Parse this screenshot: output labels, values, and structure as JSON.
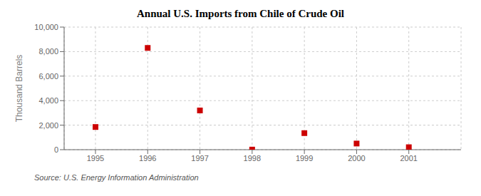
{
  "chart_data": {
    "type": "scatter",
    "title": "Annual U.S. Imports from Chile of Crude Oil",
    "y_label": "Thousand Barrels",
    "annotations": [
      "Source: U.S. Energy Information Administration"
    ],
    "x": [
      1995,
      1996,
      1997,
      1998,
      1999,
      2000,
      2001
    ],
    "values": [
      1850,
      8300,
      3200,
      7,
      1350,
      500,
      200
    ],
    "xlim": [
      1994.4,
      2002.0
    ],
    "xticks": [
      1995,
      1996,
      1997,
      1998,
      1999,
      2000,
      2001
    ],
    "ylim": [
      0,
      10000
    ],
    "yticks": [
      0,
      {
        "value": 2000,
        "label": "2,000"
      },
      {
        "value": 4000,
        "label": "4,000"
      },
      {
        "value": 6000,
        "label": "6,000"
      },
      {
        "value": 8000,
        "label": "8,000"
      },
      {
        "value": 10000,
        "label": "10,000"
      }
    ],
    "color": "#cc0000",
    "marker": "square",
    "grid": true
  }
}
